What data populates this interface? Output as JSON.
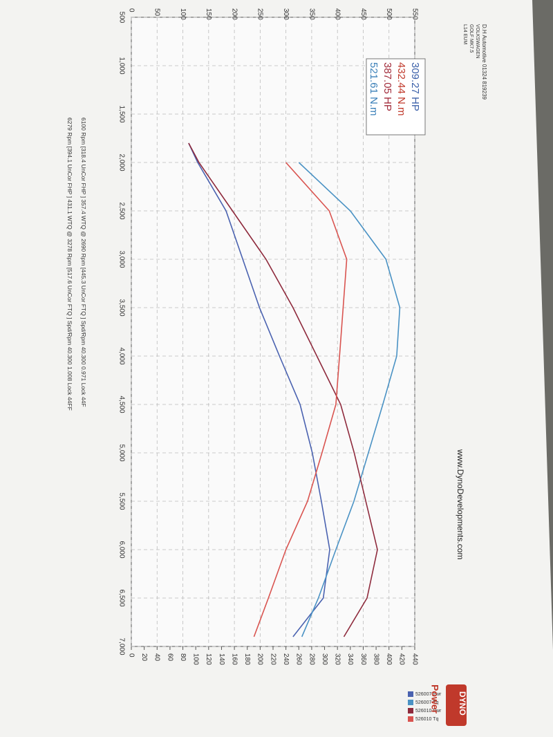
{
  "chart_data": {
    "type": "line",
    "header": [
      "D.H Automotive 01324 819239",
      "VOLKSWAGEN",
      "GOLF MK7.5",
      "L14 EUM"
    ],
    "website": "www.DynoDevelopments.com",
    "logo": "DYNO",
    "y2_label": "Power",
    "summary": [
      {
        "text": "309.27 HP",
        "color": "#3a5fa8"
      },
      {
        "text": "432.44 N.m",
        "color": "#c0392b"
      },
      {
        "text": "387.05 HP",
        "color": "#a02838"
      },
      {
        "text": "521.61 N.m",
        "color": "#3a7fb8"
      }
    ],
    "footer": [
      "6100 Rpm [318.4 UnCor FHP ] 357.4 WTQ @ 2690 Rpm [445.3 UnCor FTQ ] Spd/Rpm 40.300 0.971 Lock 44F",
      "6279 Rpm [394.1 UnCor FHP ] 431.1 WTQ @ 3278 Rpm [517.6 UnCor FTQ ] Spd/Rpm 40.300 1.008 Lock 44FF"
    ],
    "x": [
      1800,
      2000,
      2500,
      3000,
      3500,
      4000,
      4500,
      5000,
      5500,
      6000,
      6500,
      6900
    ],
    "xlim": [
      500,
      7000
    ],
    "xticks": [
      500,
      {
        "value": 1000,
        "label": "1,000"
      },
      {
        "value": 1500,
        "label": "1,500"
      },
      {
        "value": 2000,
        "label": "2,000"
      },
      {
        "value": 2500,
        "label": "2,500"
      },
      {
        "value": 3000,
        "label": "3,000"
      },
      {
        "value": 3500,
        "label": "3,500"
      },
      {
        "value": 4000,
        "label": "4,000"
      },
      {
        "value": 4500,
        "label": "4,500"
      },
      {
        "value": 5000,
        "label": "5,000"
      },
      {
        "value": 5500,
        "label": "5,500"
      },
      {
        "value": 6000,
        "label": "6,000"
      },
      {
        "value": 6500,
        "label": "6,500"
      },
      {
        "value": 7000,
        "label": "7,000"
      }
    ],
    "ylim": [
      0,
      550
    ],
    "yticks": [
      0,
      50,
      100,
      150,
      200,
      250,
      300,
      350,
      400,
      450,
      500,
      550
    ],
    "y2lim": [
      0,
      440
    ],
    "y2ticks": [
      0,
      20,
      40,
      60,
      80,
      100,
      120,
      140,
      160,
      180,
      200,
      220,
      240,
      260,
      280,
      300,
      320,
      340,
      360,
      380,
      400,
      420,
      440
    ],
    "grid": true,
    "series": [
      {
        "name": "526007 Pwr",
        "color": "#4a62b0",
        "axis": "y2",
        "values": [
          89,
          103,
          147,
          173,
          199,
          230,
          262,
          281,
          295,
          308,
          298,
          251
        ]
      },
      {
        "name": "526007 Tq",
        "color": "#4a92c4",
        "values": [
          null,
          325,
          425,
          494,
          521,
          515,
          488,
          460,
          432,
          397,
          363,
          331
        ]
      },
      {
        "name": "526010 Pwr",
        "color": "#8e2a3c",
        "axis": "y2",
        "values": [
          89,
          105,
          157,
          209,
          251,
          288,
          325,
          346,
          364,
          382,
          366,
          330
        ]
      },
      {
        "name": "526010 Tq",
        "color": "#d9534f",
        "values": [
          null,
          300,
          384,
          418,
          411,
          404,
          397,
          370,
          342,
          300,
          266,
          238
        ]
      }
    ]
  }
}
